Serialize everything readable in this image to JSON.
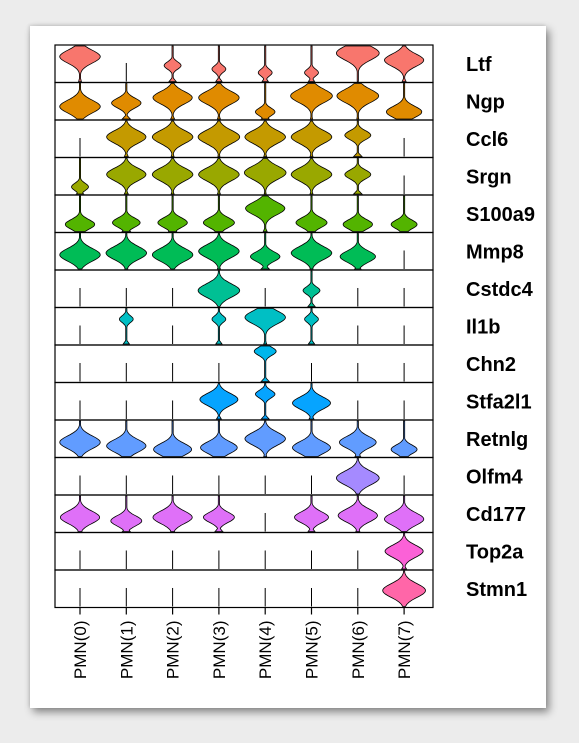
{
  "chart_data": {
    "type": "violin",
    "title": "",
    "xlabel": "",
    "ylabel": "",
    "categories": [
      "PMN(0)",
      "PMN(1)",
      "PMN(2)",
      "PMN(3)",
      "PMN(4)",
      "PMN(5)",
      "PMN(6)",
      "PMN(7)"
    ],
    "colors": [
      "#f8766d",
      "#e08b00",
      "#c49a00",
      "#99a800",
      "#53b400",
      "#00bc56",
      "#00c094",
      "#00bfc4",
      "#00b6eb",
      "#06a4ff",
      "#619cff",
      "#a58aff",
      "#df70f8",
      "#fb61d7",
      "#ff66a8"
    ],
    "genes": [
      {
        "name": "Ltf",
        "color": "#f8766d",
        "pct": [
          0.85,
          0.0,
          0.15,
          0.1,
          0.1,
          0.1,
          0.95,
          0.8
        ],
        "level": [
          0.7,
          0.0,
          0.45,
          0.35,
          0.25,
          0.25,
          0.8,
          0.6
        ]
      },
      {
        "name": "Ngp",
        "color": "#e08b00",
        "pct": [
          0.85,
          0.45,
          0.8,
          0.85,
          0.2,
          0.9,
          0.9,
          0.65
        ],
        "level": [
          0.35,
          0.45,
          0.6,
          0.6,
          0.2,
          0.65,
          0.65,
          0.2
        ]
      },
      {
        "name": "Ccl6",
        "color": "#c49a00",
        "pct": [
          0.0,
          0.8,
          0.85,
          0.9,
          0.85,
          0.85,
          0.35,
          0.0
        ],
        "level": [
          0.0,
          0.55,
          0.55,
          0.55,
          0.55,
          0.55,
          0.6,
          0.0
        ]
      },
      {
        "name": "Srgn",
        "color": "#99a800",
        "pct": [
          0.15,
          0.8,
          0.85,
          0.85,
          0.9,
          0.85,
          0.35,
          0.0
        ],
        "level": [
          0.2,
          0.55,
          0.55,
          0.55,
          0.6,
          0.55,
          0.55,
          0.0
        ]
      },
      {
        "name": "S100a9",
        "color": "#53b400",
        "pct": [
          0.45,
          0.4,
          0.45,
          0.5,
          0.8,
          0.5,
          0.45,
          0.35
        ],
        "level": [
          0.2,
          0.25,
          0.25,
          0.25,
          0.65,
          0.25,
          0.2,
          0.2
        ]
      },
      {
        "name": "Mmp8",
        "color": "#00bc56",
        "pct": [
          0.85,
          0.85,
          0.85,
          0.85,
          0.45,
          0.85,
          0.65,
          0.0
        ],
        "level": [
          0.4,
          0.45,
          0.4,
          0.5,
          0.35,
          0.45,
          0.35,
          0.0
        ]
      },
      {
        "name": "Cstdc4",
        "color": "#00c094",
        "pct": [
          0.0,
          0.0,
          0.0,
          0.9,
          0.0,
          0.15,
          0.0,
          0.0
        ],
        "level": [
          0.0,
          0.0,
          0.0,
          0.45,
          0.0,
          0.45,
          0.0,
          0.0
        ]
      },
      {
        "name": "Il1b",
        "color": "#00bfc4",
        "pct": [
          0.0,
          0.1,
          0.0,
          0.1,
          0.85,
          0.1,
          0.0,
          0.0
        ],
        "level": [
          0.0,
          0.7,
          0.0,
          0.7,
          0.75,
          0.7,
          0.0,
          0.0
        ]
      },
      {
        "name": "Chn2",
        "color": "#00b6eb",
        "pct": [
          0.0,
          0.0,
          0.0,
          0.0,
          0.25,
          0.0,
          0.0,
          0.0
        ],
        "level": [
          0.0,
          0.0,
          0.0,
          0.0,
          0.85,
          0.0,
          0.0,
          0.0
        ]
      },
      {
        "name": "Stfa2l1",
        "color": "#06a4ff",
        "pct": [
          0.0,
          0.0,
          0.0,
          0.75,
          0.2,
          0.75,
          0.0,
          0.0
        ],
        "level": [
          0.0,
          0.0,
          0.0,
          0.55,
          0.7,
          0.45,
          0.0,
          0.0
        ]
      },
      {
        "name": "Retnlg",
        "color": "#619cff",
        "pct": [
          0.85,
          0.8,
          0.75,
          0.7,
          0.85,
          0.75,
          0.7,
          0.35
        ],
        "level": [
          0.4,
          0.3,
          0.2,
          0.25,
          0.5,
          0.25,
          0.4,
          0.2
        ]
      },
      {
        "name": "Olfm4",
        "color": "#a58aff",
        "pct": [
          0.0,
          0.0,
          0.0,
          0.0,
          0.0,
          0.0,
          0.95,
          0.0
        ],
        "level": [
          0.0,
          0.0,
          0.0,
          0.0,
          0.0,
          0.0,
          0.45,
          0.0
        ]
      },
      {
        "name": "Cd177",
        "color": "#df70f8",
        "pct": [
          0.8,
          0.5,
          0.8,
          0.5,
          0.0,
          0.6,
          0.8,
          0.8
        ],
        "level": [
          0.4,
          0.3,
          0.4,
          0.4,
          0.0,
          0.4,
          0.45,
          0.35
        ]
      },
      {
        "name": "Top2a",
        "color": "#fb61d7",
        "pct": [
          0.0,
          0.0,
          0.0,
          0.0,
          0.0,
          0.0,
          0.0,
          0.75
        ],
        "level": [
          0.0,
          0.0,
          0.0,
          0.0,
          0.0,
          0.0,
          0.0,
          0.5
        ]
      },
      {
        "name": "Stmn1",
        "color": "#ff66a8",
        "pct": [
          0.0,
          0.0,
          0.0,
          0.0,
          0.0,
          0.0,
          0.0,
          0.95
        ],
        "level": [
          0.0,
          0.0,
          0.0,
          0.0,
          0.0,
          0.0,
          0.0,
          0.45
        ]
      }
    ]
  }
}
